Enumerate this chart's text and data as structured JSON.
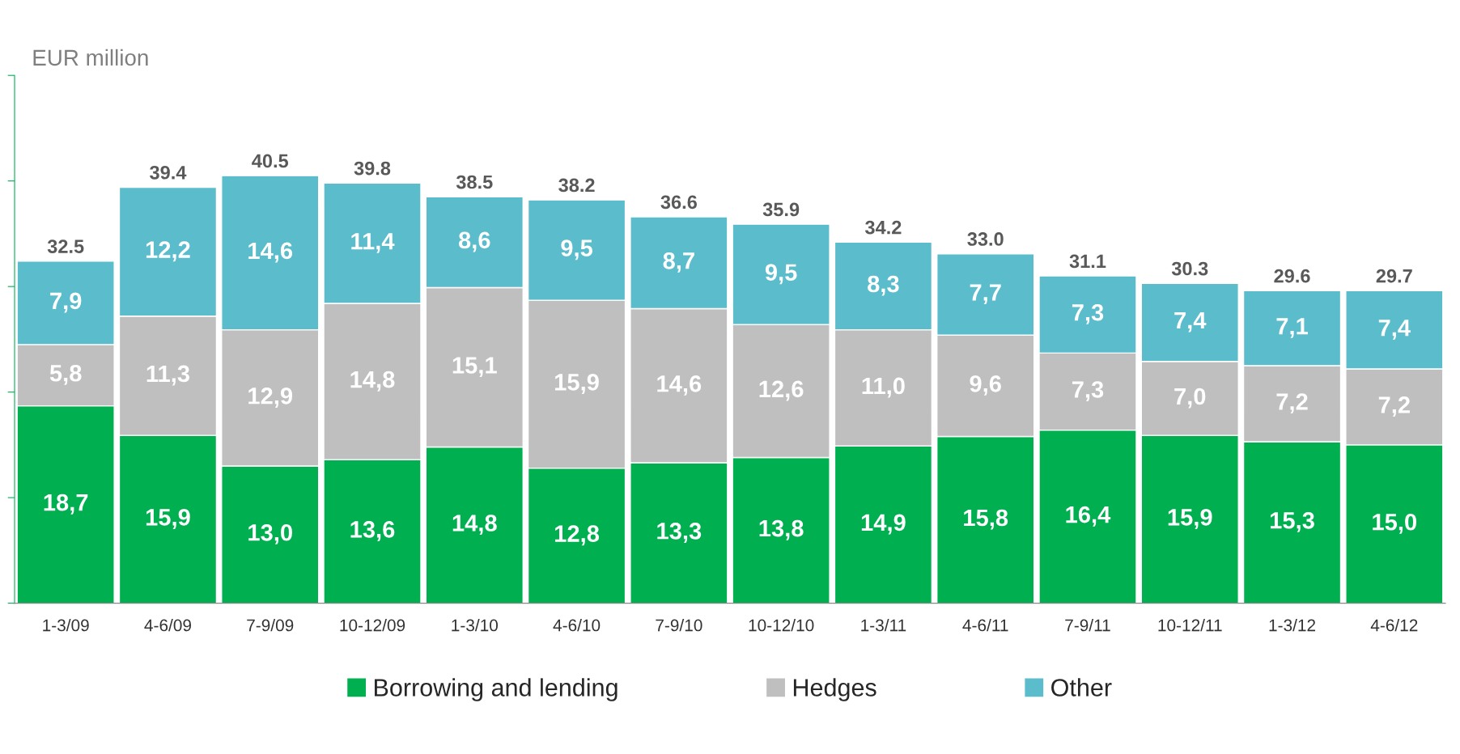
{
  "chart_data": {
    "type": "bar",
    "stacked": true,
    "ylabel": "EUR million",
    "categories": [
      "1-3/09",
      "4-6/09",
      "7-9/09",
      "10-12/09",
      "1-3/10",
      "4-6/10",
      "7-9/10",
      "10-12/10",
      "1-3/11",
      "4-6/11",
      "7-9/11",
      "10-12/11",
      "1-3/12",
      "4-6/12"
    ],
    "series": [
      {
        "name": "Borrowing and lending",
        "color": "#00b050",
        "values": [
          18.7,
          15.9,
          13.0,
          13.6,
          14.8,
          12.8,
          13.3,
          13.8,
          14.9,
          15.8,
          16.4,
          15.9,
          15.3,
          15.0
        ],
        "value_labels": [
          "18,7",
          "15,9",
          "13,0",
          "13,6",
          "14,8",
          "12,8",
          "13,3",
          "13,8",
          "14,9",
          "15,8",
          "16,4",
          "15,9",
          "15,3",
          "15,0"
        ]
      },
      {
        "name": "Hedges",
        "color": "#bfbfbf",
        "values": [
          5.8,
          11.3,
          12.9,
          14.8,
          15.1,
          15.9,
          14.6,
          12.6,
          11.0,
          9.6,
          7.3,
          7.0,
          7.2,
          7.2
        ],
        "value_labels": [
          "5,8",
          "11,3",
          "12,9",
          "14,8",
          "15,1",
          "15,9",
          "14,6",
          "12,6",
          "11,0",
          "9,6",
          "7,3",
          "7,0",
          "7,2",
          "7,2"
        ]
      },
      {
        "name": "Other",
        "color": "#5bbccc",
        "values": [
          7.9,
          12.2,
          14.6,
          11.4,
          8.6,
          9.5,
          8.7,
          9.5,
          8.3,
          7.7,
          7.3,
          7.4,
          7.1,
          7.4
        ],
        "value_labels": [
          "7,9",
          "12,2",
          "14,6",
          "11,4",
          "8,6",
          "9,5",
          "8,7",
          "9,5",
          "8,3",
          "7,7",
          "7,3",
          "7,4",
          "7,1",
          "7,4"
        ]
      }
    ],
    "totals": [
      "32.5",
      "39.4",
      "40.5",
      "39.8",
      "38.5",
      "38.2",
      "36.6",
      "35.9",
      "34.2",
      "33.0",
      "31.1",
      "30.3",
      "29.6",
      "29.7"
    ],
    "ylim": [
      0,
      50
    ],
    "yticks": [
      {
        "value": 0,
        "label": null
      },
      {
        "value": 10,
        "label": null
      },
      {
        "value": 20,
        "label": null
      },
      {
        "value": 30,
        "label": null
      },
      {
        "value": 40,
        "label": null
      },
      {
        "value": 50,
        "label": null
      }
    ],
    "tick_labels": "x",
    "grid": false,
    "legend": "bottom"
  }
}
